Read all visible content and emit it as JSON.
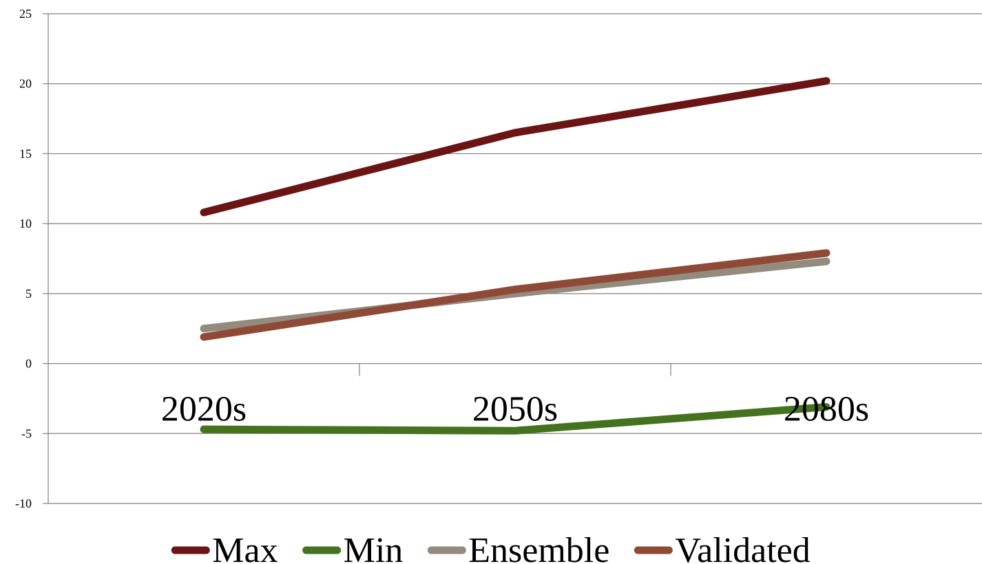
{
  "chart_data": {
    "type": "line",
    "categories": [
      "2020s",
      "2050s",
      "2080s"
    ],
    "series": [
      {
        "name": "Max",
        "values": [
          10.8,
          16.5,
          20.2
        ],
        "color": "#6b1414"
      },
      {
        "name": "Min",
        "values": [
          -4.7,
          -4.8,
          -3.1
        ],
        "color": "#45721e"
      },
      {
        "name": "Ensemble",
        "values": [
          2.5,
          5.0,
          7.3
        ],
        "color": "#938b7d"
      },
      {
        "name": "Validated",
        "values": [
          1.9,
          5.3,
          7.9
        ],
        "color": "#8e4a37"
      }
    ],
    "yticks": [
      "25",
      "20",
      "15",
      "10",
      "5",
      "0",
      "-5",
      "-10"
    ],
    "ylim": [
      -10,
      25
    ],
    "grid": true,
    "legend": "bottom"
  }
}
